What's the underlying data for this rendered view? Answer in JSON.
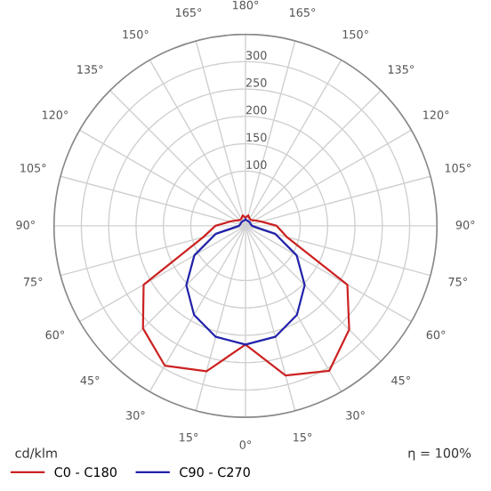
{
  "chart_data": {
    "type": "radar",
    "categories": [
      "180°",
      "165°",
      "150°",
      "135°",
      "120°",
      "105°",
      "90°",
      "75°",
      "60°",
      "45°",
      "30°",
      "15°",
      "0°",
      "15°",
      "30°",
      "45°",
      "60°",
      "75°",
      "90°",
      "105°",
      "120°",
      "135°",
      "150°",
      "165°"
    ],
    "ylim": [
      0,
      350
    ],
    "yticks": [
      100,
      150,
      200,
      250,
      300
    ],
    "ylabel": "cd/klm",
    "annotations": [
      "η = 100%"
    ],
    "grid": true,
    "legend": "bottom",
    "series": [
      {
        "name": "C0 - C180",
        "color": "#cc2222",
        "values": [
          15,
          20,
          15,
          15,
          20,
          30,
          57,
          78,
          215,
          268,
          306,
          283,
          217,
          275,
          295,
          265,
          215,
          80,
          55,
          30,
          20,
          15,
          15,
          20
        ]
      },
      {
        "name": "C90 - C270",
        "color": "#2222aa",
        "values": [
          12,
          10,
          10,
          10,
          10,
          10,
          12,
          56,
          108,
          153,
          188,
          210,
          217,
          210,
          188,
          153,
          108,
          56,
          12,
          10,
          10,
          10,
          10,
          10
        ]
      }
    ]
  }
}
